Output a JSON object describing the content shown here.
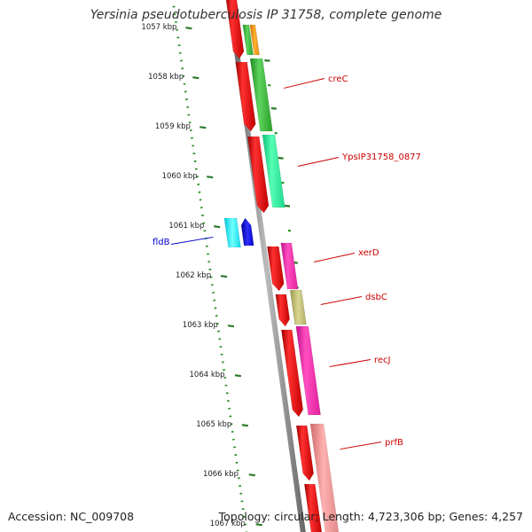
{
  "title": "Yersinia pseudotuberculosis IP 31758, complete genome",
  "footer": {
    "accession": "Accession: NC_009708",
    "summary": "Topology: circular; Length: 4,723,306 bp; Genes: 4,257"
  },
  "colors": {
    "background": "#ffffff",
    "backbone": "#888888",
    "cds_forward": "#ff0000",
    "forward_gene_label": "#cc0000",
    "reverse_gene_label": "#0000cc",
    "ruler_dots": "#1a8a1a",
    "ruler_ticks": "#2a7a2a"
  },
  "ruler": {
    "unit": "kbp",
    "tick_labels": [
      "1057 kbp",
      "1058 kbp",
      "1059 kbp",
      "1060 kbp",
      "1061 kbp",
      "1062 kbp",
      "1063 kbp",
      "1064 kbp",
      "1065 kbp",
      "1066 kbp",
      "1067 kbp"
    ]
  },
  "gene_labels": [
    {
      "text": "creC",
      "strand": "forward"
    },
    {
      "text": "YpsIP31758_0877",
      "strand": "forward"
    },
    {
      "text": "xerD",
      "strand": "forward"
    },
    {
      "text": "dsbC",
      "strand": "forward"
    },
    {
      "text": "recJ",
      "strand": "forward"
    },
    {
      "text": "prfB",
      "strand": "forward"
    },
    {
      "text": "fldB",
      "strand": "reverse"
    }
  ]
}
